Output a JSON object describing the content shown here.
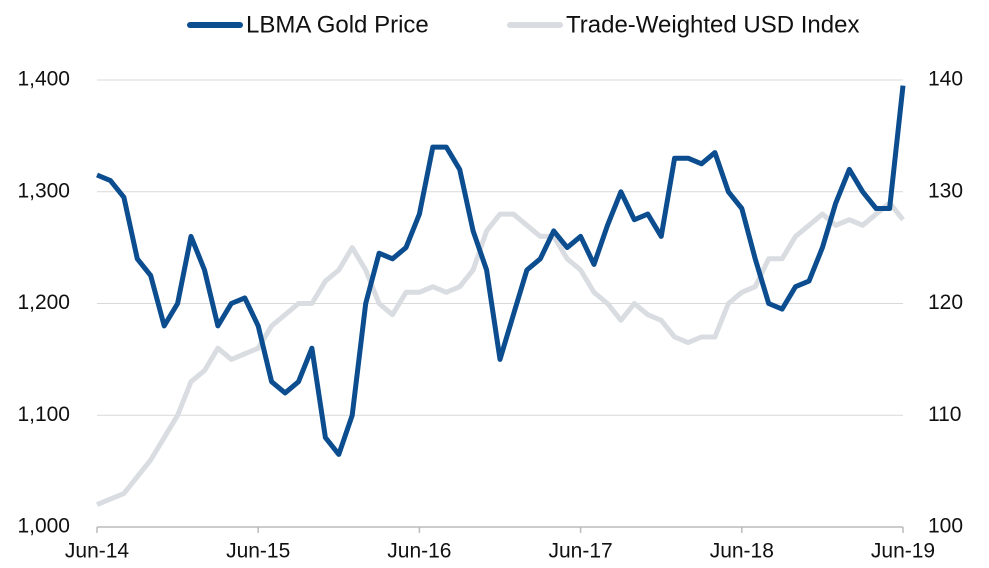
{
  "chart_data": {
    "type": "line",
    "categories": [
      "Jun-14",
      null,
      null,
      null,
      null,
      null,
      null,
      null,
      null,
      null,
      null,
      null,
      "Jun-15",
      null,
      null,
      null,
      null,
      null,
      null,
      null,
      null,
      null,
      null,
      null,
      "Jun-16",
      null,
      null,
      null,
      null,
      null,
      null,
      null,
      null,
      null,
      null,
      null,
      "Jun-17",
      null,
      null,
      null,
      null,
      null,
      null,
      null,
      null,
      null,
      null,
      null,
      "Jun-18",
      null,
      null,
      null,
      null,
      null,
      null,
      null,
      null,
      null,
      null,
      null,
      "Jun-19"
    ],
    "series": [
      {
        "name": "LBMA Gold Price",
        "color": "#0b4d8f",
        "axis": "y",
        "values": [
          1315,
          1310,
          1295,
          1240,
          1225,
          1180,
          1200,
          1260,
          1230,
          1180,
          1200,
          1205,
          1180,
          1130,
          1120,
          1130,
          1160,
          1080,
          1065,
          1100,
          1200,
          1245,
          1240,
          1250,
          1280,
          1340,
          1340,
          1320,
          1265,
          1230,
          1150,
          1190,
          1230,
          1240,
          1265,
          1250,
          1260,
          1235,
          1270,
          1300,
          1275,
          1280,
          1260,
          1330,
          1330,
          1325,
          1335,
          1300,
          1285,
          1240,
          1200,
          1195,
          1215,
          1220,
          1250,
          1290,
          1320,
          1300,
          1285,
          1285,
          1395
        ]
      },
      {
        "name": "Trade-Weighted USD Index",
        "color": "#d9dce0",
        "axis": "y2",
        "values": [
          102,
          102.5,
          103,
          104.5,
          106,
          108,
          110,
          113,
          114,
          116,
          115,
          115.5,
          116,
          118,
          119,
          120,
          120,
          122,
          123,
          125,
          123,
          120,
          119,
          121,
          121,
          121.5,
          121,
          121.5,
          123,
          126.5,
          128,
          128,
          127,
          126,
          126,
          124,
          123,
          121,
          120,
          118.5,
          120,
          119,
          118.5,
          117,
          116.5,
          117,
          117,
          120,
          121,
          121.5,
          124,
          124,
          126,
          127,
          128,
          127,
          127.5,
          127,
          128,
          129,
          127.5
        ]
      }
    ],
    "ylim": [
      1000,
      1400
    ],
    "yticks": [
      {
        "value": 1000,
        "label": "1,000"
      },
      {
        "value": 1100,
        "label": "1,100"
      },
      {
        "value": 1200,
        "label": "1,200"
      },
      {
        "value": 1300,
        "label": "1,300"
      },
      {
        "value": 1400,
        "label": "1,400"
      }
    ],
    "y2lim": [
      100,
      140
    ],
    "y2ticks": [
      100,
      110,
      120,
      130,
      140
    ],
    "grid": true,
    "legend": "top"
  }
}
